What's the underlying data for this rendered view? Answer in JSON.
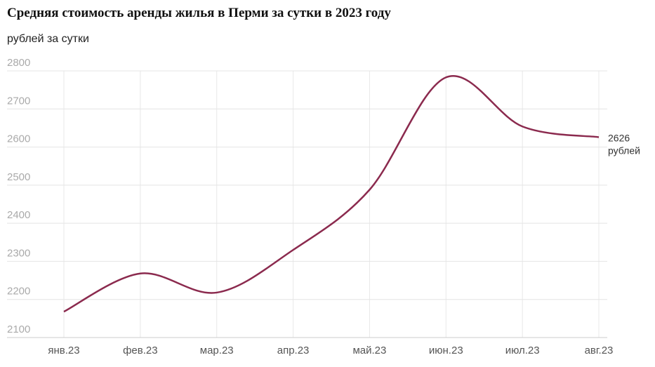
{
  "chart_data": {
    "type": "line",
    "title": "Средняя стоимость аренды жилья в Перми за сутки в 2023 году",
    "subtitle": "рублей за сутки",
    "categories": [
      "янв.23",
      "фев.23",
      "мар.23",
      "апр.23",
      "май.23",
      "июн.23",
      "июл.23",
      "авг.23"
    ],
    "values": [
      2168,
      2268,
      2218,
      2330,
      2488,
      2783,
      2654,
      2626
    ],
    "color": "#8b2a4e",
    "end_label_unit": "рублей",
    "ylim": [
      2100,
      2800
    ],
    "yticks": [
      2100,
      2200,
      2300,
      2400,
      2500,
      2600,
      2700,
      2800
    ],
    "grid": true
  }
}
